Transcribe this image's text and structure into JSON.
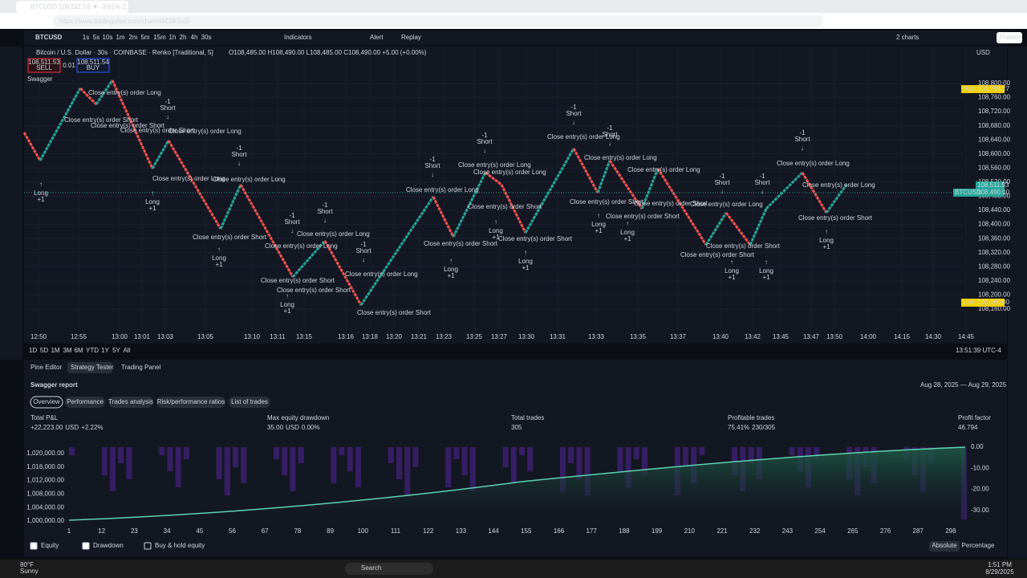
{
  "browser": {
    "tab_title": "BTCUSD 108,511.53 ▼ -3.61% 2...",
    "url": "https://www.tradingview.com/chart/45C0F5uZ/"
  },
  "toolbar": {
    "symbol": "BTCUSD",
    "intervals": [
      "1s",
      "5s",
      "10s",
      "1m",
      "2m",
      "5m",
      "15m",
      "1h",
      "2h",
      "4h",
      "30s"
    ],
    "indicators": "Indicators",
    "alert": "Alert",
    "replay": "Replay",
    "layout": "2 charts",
    "publish": "Publish"
  },
  "chart": {
    "title": "Bitcoin / U.S. Dollar · 30s · COINBASE · Renko [Traditional, 5]",
    "ohlc": "O108,485.00 H108,490.00 L108,485.00 C108,490.00 +5.00 (+0.00%)",
    "sell_price": "108,511.53",
    "sell": "SELL",
    "spread": "0.01",
    "buy_price": "108,511.54",
    "buy": "BUY",
    "indicator": "Swagger",
    "currency": "USD",
    "price_labels": [
      "108,800.00",
      "108,760.00",
      "108,720.00",
      "108,680.00",
      "108,640.00",
      "108,600.00",
      "108,560.00",
      "108,520.00",
      "108,480.00",
      "108,440.00",
      "108,400.00",
      "108,360.00",
      "108,320.00",
      "108,280.00",
      "108,240.00",
      "108,200.00",
      "108,160.00"
    ],
    "high_label": "High",
    "high_price": "108,784.27",
    "last_price": "108,511.53",
    "symbol_badge": "BTCUSD",
    "symbol_price": "108,490.00",
    "low_label": "Low",
    "low_price": "108,180.00",
    "time_labels": [
      "12:50",
      "12:55",
      "13:00",
      "13:01",
      "13:03",
      "13:05",
      "13:10",
      "13:11",
      "13:15",
      "13:16",
      "13:18",
      "13:20",
      "13:21",
      "13:23",
      "13:25",
      "13:27",
      "13:30",
      "13:31",
      "13:33",
      "13:35",
      "13:37",
      "13:40",
      "13:42",
      "13:45",
      "13:47",
      "13:50",
      "14:00",
      "14:15",
      "14:30",
      "14:45"
    ],
    "annotations": [
      "Close entry(s) order Long",
      "Close entry(s) order Short",
      "Long",
      "Short",
      "+1",
      "-1",
      "entry(s) order Short"
    ],
    "ranges": [
      "1D",
      "5D",
      "1M",
      "3M",
      "6M",
      "YTD",
      "1Y",
      "5Y",
      "All"
    ],
    "clock": "13:51:39 UTC-4"
  },
  "panel": {
    "tabs": [
      "Pine Editor",
      "Strategy Tester",
      "Trading Panel"
    ],
    "report": "Swagger report",
    "dates": "Aug 28, 2025 — Aug 29, 2025",
    "subtabs": [
      "Overview",
      "Performance",
      "Trades analysis",
      "Risk/performance ratios",
      "List of trades"
    ],
    "metrics": [
      {
        "label": "Total P&L",
        "value": "+22,223.00",
        "unit": "USD",
        "extra": "+2.22%"
      },
      {
        "label": "Max equity drawdown",
        "value": "35.00",
        "unit": "USD",
        "extra": "0.00%"
      },
      {
        "label": "Total trades",
        "value": "305"
      },
      {
        "label": "Profitable trades",
        "value": "75.41%",
        "extra": "230/305"
      },
      {
        "label": "Profit factor",
        "value": "46.794"
      }
    ],
    "equity_axis": [
      "1,020,000.00",
      "1,016,000.00",
      "1,012,000.00",
      "1,008,000.00",
      "1,004,000.00",
      "1,000,000.00"
    ],
    "drawdown_axis": [
      "0.00",
      "-10.00",
      "-20.00",
      "-30.00"
    ],
    "trade_axis": [
      "1",
      "12",
      "23",
      "34",
      "45",
      "56",
      "67",
      "78",
      "89",
      "100",
      "111",
      "122",
      "133",
      "144",
      "155",
      "166",
      "177",
      "188",
      "199",
      "210",
      "221",
      "232",
      "243",
      "254",
      "265",
      "276",
      "287",
      "298"
    ],
    "checks": [
      "Equity",
      "Drawdown",
      "Buy & hold equity"
    ],
    "modes": [
      "Absolute",
      "Percentage"
    ]
  },
  "taskbar": {
    "temp": "80°F",
    "weather": "Sunny",
    "search": "Search",
    "time": "1:51 PM",
    "date": "8/29/2025"
  }
}
